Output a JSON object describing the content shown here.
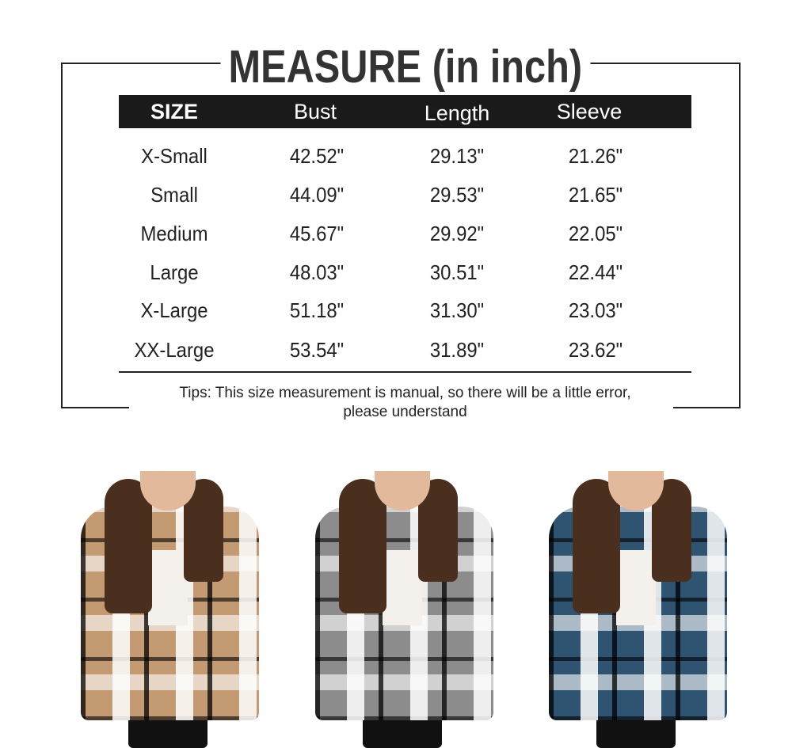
{
  "title": "MEASURE (in inch)",
  "headers": [
    "SIZE",
    "Bust",
    "Length",
    "Sleeve"
  ],
  "rows": [
    [
      "X-Small",
      "42.52\"",
      "29.13\"",
      "21.26\""
    ],
    [
      "Small",
      "44.09\"",
      "29.53\"",
      "21.65\""
    ],
    [
      "Medium",
      "45.67\"",
      "29.92\"",
      "22.05\""
    ],
    [
      "Large",
      "48.03\"",
      "30.51\"",
      "22.44\""
    ],
    [
      "X-Large",
      "51.18\"",
      "31.30\"",
      "23.03\""
    ],
    [
      "XX-Large",
      "53.54\"",
      "31.89\"",
      "23.62\""
    ]
  ],
  "tips": {
    "line1": "Tips:  This size measurement is manual, so there will be a little error,",
    "line2": "please understand"
  },
  "photos": [
    {
      "color": "#c49a72"
    },
    {
      "color": "#8c8c8c"
    },
    {
      "color": "#2f5472"
    }
  ]
}
